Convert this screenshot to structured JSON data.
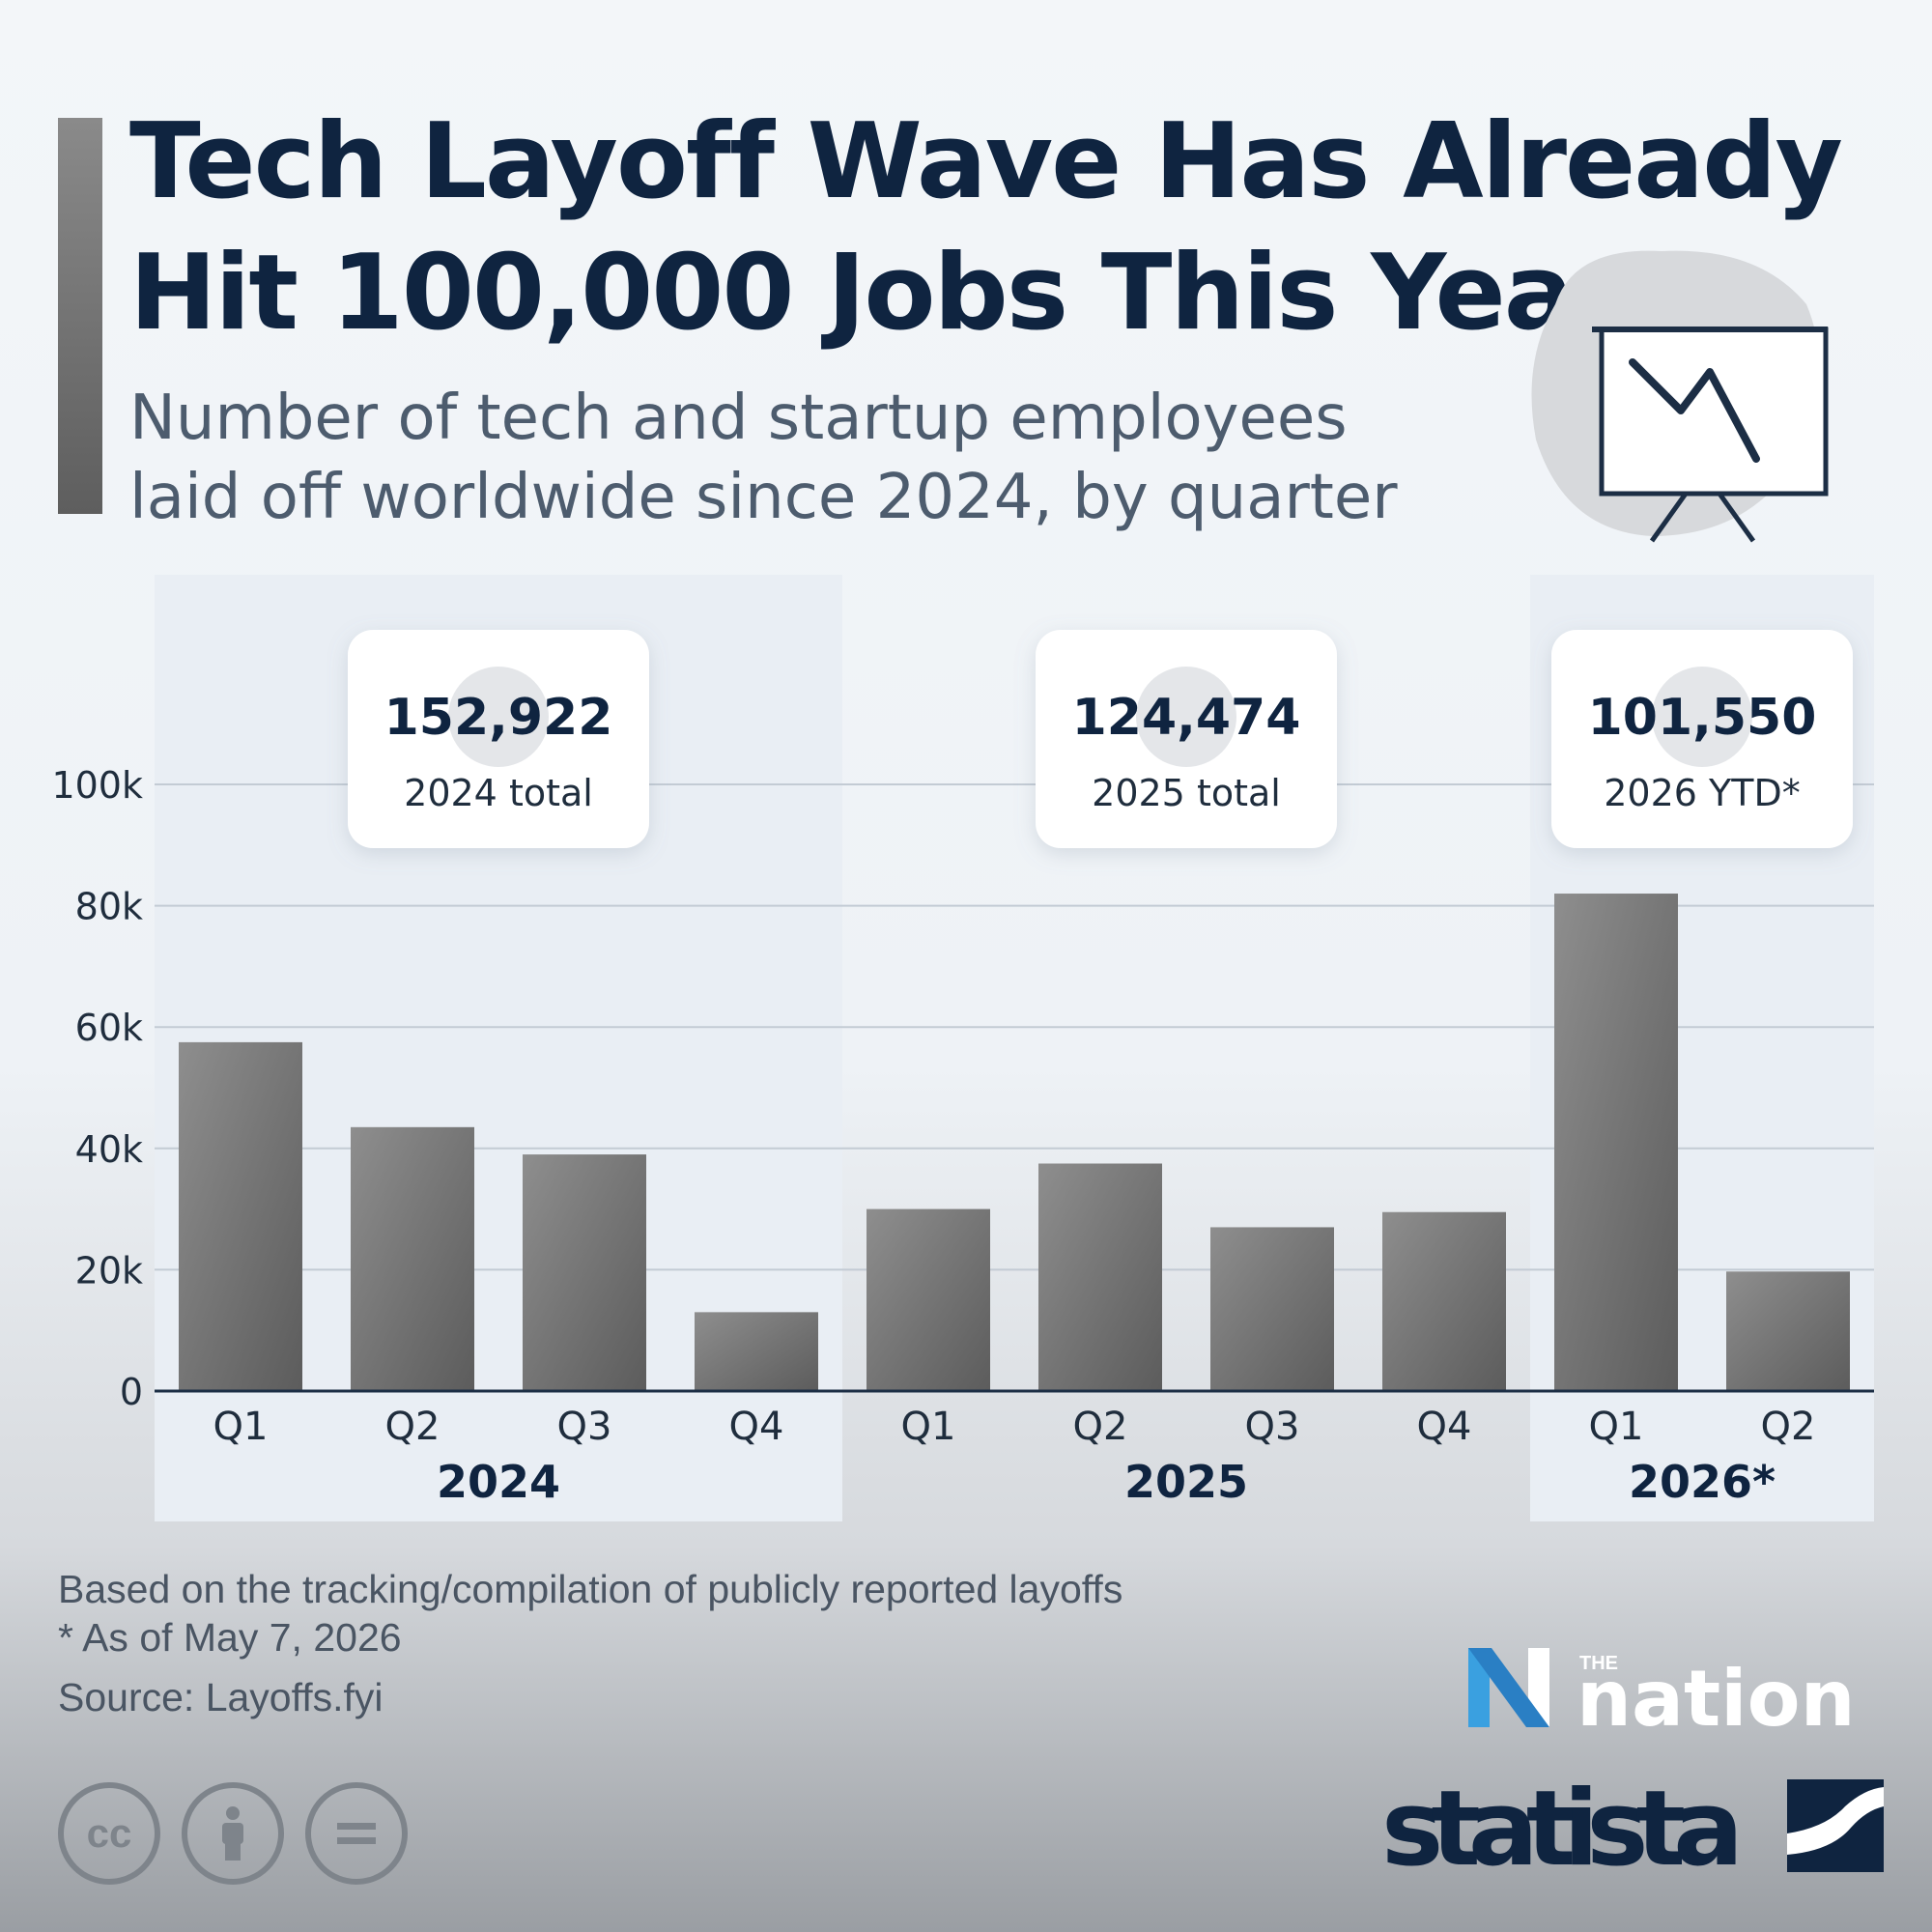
{
  "header": {
    "title_line1": "Tech Layoff Wave Has Already",
    "title_line2": "Hit 100,000 Jobs This Year",
    "subtitle_line1": "Number of tech and startup employees",
    "subtitle_line2": "laid off worldwide since 2024, by quarter"
  },
  "chart_data": {
    "type": "bar",
    "title": "Tech Layoff Wave Has Already Hit 100,000 Jobs This Year",
    "subtitle": "Number of tech and startup employees laid off worldwide since 2024, by quarter",
    "categories": [
      "Q1",
      "Q2",
      "Q3",
      "Q4",
      "Q1",
      "Q2",
      "Q3",
      "Q4",
      "Q1",
      "Q2"
    ],
    "groups": [
      {
        "label": "2024",
        "start": 0,
        "count": 4,
        "callout_value": "152,922",
        "callout_label": "2024 total"
      },
      {
        "label": "2025",
        "start": 4,
        "count": 4,
        "callout_value": "124,474",
        "callout_label": "2025 total"
      },
      {
        "label": "2026*",
        "start": 8,
        "count": 2,
        "callout_value": "101,550",
        "callout_label": "2026 YTD*"
      }
    ],
    "values": [
      57500,
      43500,
      39000,
      13000,
      30000,
      37500,
      27000,
      29500,
      82000,
      19700
    ],
    "ylim": [
      0,
      100000
    ],
    "yticks": [
      0,
      20000,
      40000,
      60000,
      80000,
      100000
    ],
    "ytick_labels": [
      "0",
      "20k",
      "40k",
      "60k",
      "80k",
      "100k"
    ],
    "xlabel": "",
    "ylabel": "",
    "grid": true,
    "bar_color": "#6f6f6f"
  },
  "footer": {
    "note": "Based on the tracking/compilation of publicly reported layoffs",
    "asterisk": "* As of May 7, 2026",
    "source": "Source: Layoffs.fyi"
  },
  "logos": {
    "nation_small": "THE",
    "nation": "nation",
    "statista": "statista"
  },
  "colors": {
    "title": "#0f2440",
    "bar": "#6f6f6f",
    "group_band": "#e9eef4",
    "nation_blue": "#3aa0e0"
  }
}
